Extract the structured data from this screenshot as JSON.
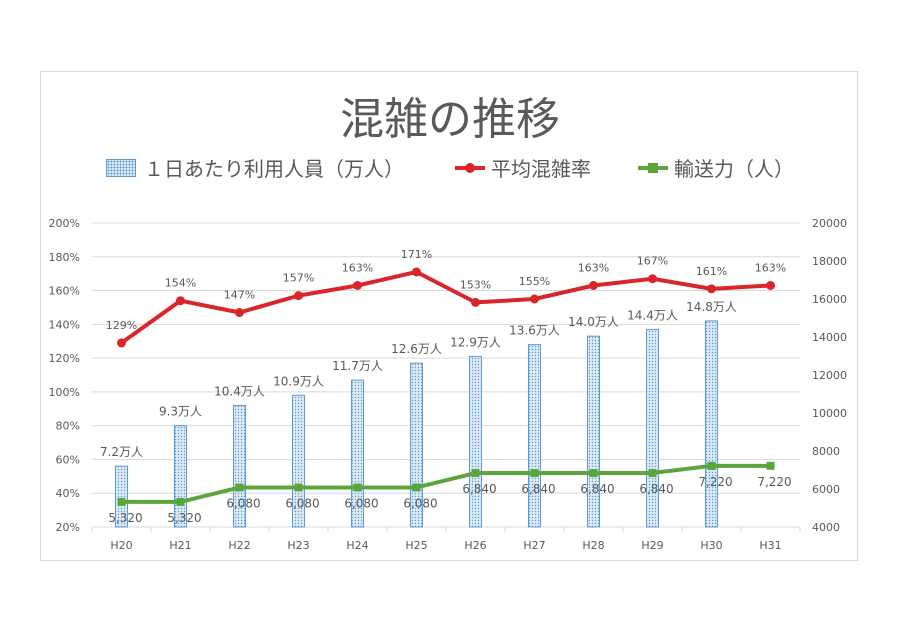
{
  "title": "混雑の推移",
  "legend": {
    "bar": "１日あたり利用人員（万人）",
    "congestion": "平均混雑率",
    "capacity": "輸送力（人）"
  },
  "colors": {
    "bar": "#5b9bd5",
    "bar_fill": "#ddeaf6",
    "congestion": "#d9262b",
    "capacity": "#5aa63c",
    "grid": "#d9d9d9",
    "text": "#595959"
  },
  "chart_data": {
    "type": "bar",
    "title": "混雑の推移",
    "categories": [
      "H20",
      "H21",
      "H22",
      "H23",
      "H24",
      "H25",
      "H26",
      "H27",
      "H28",
      "H29",
      "H30",
      "H31"
    ],
    "left_axis": {
      "ticks": [
        "200%",
        "180%",
        "160%",
        "140%",
        "120%",
        "100%",
        "80%",
        "60%",
        "40%",
        "20%"
      ],
      "ylim": [
        20,
        200
      ]
    },
    "right_axis": {
      "ticks": [
        "20000",
        "18000",
        "16000",
        "14000",
        "12000",
        "10000",
        "8000",
        "6000",
        "4000"
      ],
      "ylim": [
        4000,
        20000
      ]
    },
    "grid": true,
    "legend_position": "top",
    "series": [
      {
        "name": "１日あたり利用人員（万人）",
        "type": "bar",
        "axis": "left",
        "values": [
          56,
          80,
          92,
          98,
          107,
          117,
          121,
          128,
          133,
          137,
          142,
          null
        ],
        "labels": [
          "7.2万人",
          "9.3万人",
          "10.4万人",
          "10.9万人",
          "11.7万人",
          "12.6万人",
          "12.9万人",
          "13.6万人",
          "14.0万人",
          "14.4万人",
          "14.8万人",
          ""
        ]
      },
      {
        "name": "平均混雑率",
        "type": "line",
        "axis": "left",
        "values": [
          129,
          154,
          147,
          157,
          163,
          171,
          153,
          155,
          163,
          167,
          161,
          163
        ],
        "labels": [
          "129%",
          "154%",
          "147%",
          "157%",
          "163%",
          "171%",
          "153%",
          "155%",
          "163%",
          "167%",
          "161%",
          "163%"
        ]
      },
      {
        "name": "輸送力（人）",
        "type": "line",
        "axis": "right",
        "values": [
          5320,
          5320,
          6080,
          6080,
          6080,
          6080,
          6840,
          6840,
          6840,
          6840,
          7220,
          7220
        ],
        "labels": [
          "5,320",
          "5,320",
          "6,080",
          "6,080",
          "6,080",
          "6,080",
          "6,840",
          "6,840",
          "6,840",
          "6,840",
          "7,220",
          "7,220"
        ]
      }
    ]
  }
}
